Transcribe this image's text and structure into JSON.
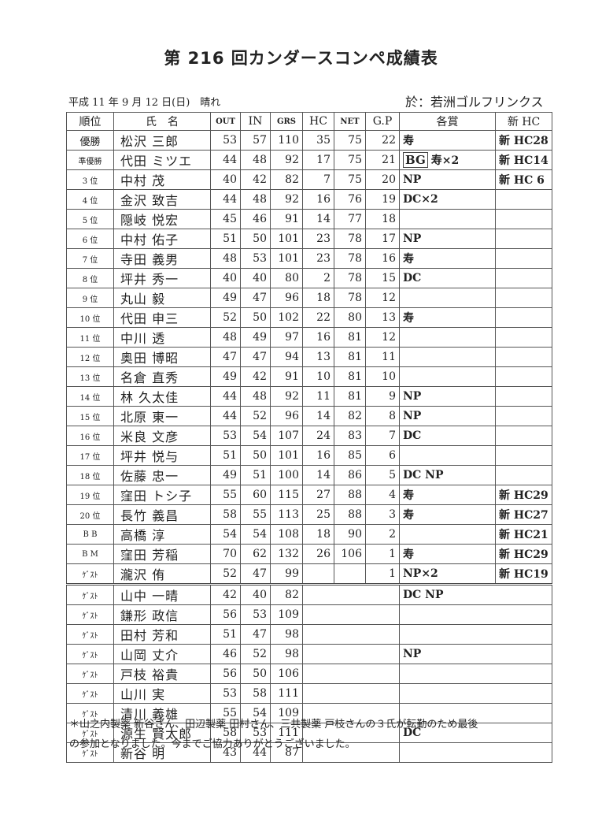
{
  "title": "第 216 回カンダースコンペ成績表",
  "date": "平成 11 年 9 月 12 日(日)　晴れ",
  "venue": "於：若洲ゴルフリンクス",
  "headers": [
    "順位",
    "氏　名",
    "OUT",
    "IN",
    "GRS",
    "HC",
    "NET",
    "G.P",
    "各賞",
    "新 HC"
  ],
  "rows": [
    {
      "rank": "優勝",
      "name": "松沢 三郎",
      "out": "53",
      "in": "57",
      "grs": "110",
      "hc": "35",
      "net": "75",
      "gp": "22",
      "award": "寿",
      "newhc": "新 HC28"
    },
    {
      "rank": "準優勝",
      "name": "代田 ミツエ",
      "out": "44",
      "in": "48",
      "grs": "92",
      "hc": "17",
      "net": "75",
      "gp": "21",
      "badge": "BG",
      "award": "寿×2",
      "newhc": "新 HC14"
    },
    {
      "rank": "3 位",
      "name": "中村 茂",
      "out": "40",
      "in": "42",
      "grs": "82",
      "hc": "7",
      "net": "75",
      "gp": "20",
      "award": "NP",
      "newhc": "新 HC 6"
    },
    {
      "rank": "4 位",
      "name": "金沢 致吉",
      "out": "44",
      "in": "48",
      "grs": "92",
      "hc": "16",
      "net": "76",
      "gp": "19",
      "award": "DC×2",
      "newhc": ""
    },
    {
      "rank": "5 位",
      "name": "隠岐 悦宏",
      "out": "45",
      "in": "46",
      "grs": "91",
      "hc": "14",
      "net": "77",
      "gp": "18",
      "award": "",
      "newhc": ""
    },
    {
      "rank": "6 位",
      "name": "中村 佑子",
      "out": "51",
      "in": "50",
      "grs": "101",
      "hc": "23",
      "net": "78",
      "gp": "17",
      "award": "NP",
      "newhc": ""
    },
    {
      "rank": "7 位",
      "name": "寺田 義男",
      "out": "48",
      "in": "53",
      "grs": "101",
      "hc": "23",
      "net": "78",
      "gp": "16",
      "award": "寿",
      "newhc": ""
    },
    {
      "rank": "8 位",
      "name": "坪井 秀一",
      "out": "40",
      "in": "40",
      "grs": "80",
      "hc": "2",
      "net": "78",
      "gp": "15",
      "award": "DC",
      "newhc": ""
    },
    {
      "rank": "9 位",
      "name": "丸山 毅",
      "out": "49",
      "in": "47",
      "grs": "96",
      "hc": "18",
      "net": "78",
      "gp": "12",
      "award": "",
      "newhc": ""
    },
    {
      "rank": "10 位",
      "name": "代田 申三",
      "out": "52",
      "in": "50",
      "grs": "102",
      "hc": "22",
      "net": "80",
      "gp": "13",
      "award": "寿",
      "newhc": ""
    },
    {
      "rank": "11 位",
      "name": "中川 透",
      "out": "48",
      "in": "49",
      "grs": "97",
      "hc": "16",
      "net": "81",
      "gp": "12",
      "award": "",
      "newhc": ""
    },
    {
      "rank": "12 位",
      "name": "奥田 博昭",
      "out": "47",
      "in": "47",
      "grs": "94",
      "hc": "13",
      "net": "81",
      "gp": "11",
      "award": "",
      "newhc": ""
    },
    {
      "rank": "13 位",
      "name": "名倉 直秀",
      "out": "49",
      "in": "42",
      "grs": "91",
      "hc": "10",
      "net": "81",
      "gp": "10",
      "award": "",
      "newhc": ""
    },
    {
      "rank": "14 位",
      "name": "林 久太佳",
      "out": "44",
      "in": "48",
      "grs": "92",
      "hc": "11",
      "net": "81",
      "gp": "9",
      "award": "NP",
      "newhc": ""
    },
    {
      "rank": "15 位",
      "name": "北原 東一",
      "out": "44",
      "in": "52",
      "grs": "96",
      "hc": "14",
      "net": "82",
      "gp": "8",
      "award": "NP",
      "newhc": ""
    },
    {
      "rank": "16 位",
      "name": "米良 文彦",
      "out": "53",
      "in": "54",
      "grs": "107",
      "hc": "24",
      "net": "83",
      "gp": "7",
      "award": "DC",
      "newhc": ""
    },
    {
      "rank": "17 位",
      "name": "坪井 悦与",
      "out": "51",
      "in": "50",
      "grs": "101",
      "hc": "16",
      "net": "85",
      "gp": "6",
      "award": "",
      "newhc": ""
    },
    {
      "rank": "18 位",
      "name": "佐藤 忠一",
      "out": "49",
      "in": "51",
      "grs": "100",
      "hc": "14",
      "net": "86",
      "gp": "5",
      "award": "DC NP",
      "newhc": ""
    },
    {
      "rank": "19 位",
      "name": "窪田 トシ子",
      "out": "55",
      "in": "60",
      "grs": "115",
      "hc": "27",
      "net": "88",
      "gp": "4",
      "award": "寿",
      "newhc": "新 HC29"
    },
    {
      "rank": "20 位",
      "name": "長竹 義昌",
      "out": "58",
      "in": "55",
      "grs": "113",
      "hc": "25",
      "net": "88",
      "gp": "3",
      "award": "寿",
      "newhc": "新 HC27"
    },
    {
      "rank": "B B",
      "name": "高橋 淳",
      "out": "54",
      "in": "54",
      "grs": "108",
      "hc": "18",
      "net": "90",
      "gp": "2",
      "award": "",
      "newhc": "新 HC21"
    },
    {
      "rank": "B M",
      "name": "窪田 芳稲",
      "out": "70",
      "in": "62",
      "grs": "132",
      "hc": "26",
      "net": "106",
      "gp": "1",
      "award": "寿",
      "newhc": "新 HC29"
    },
    {
      "rank": "ｹﾞｽﾄ",
      "name": "瀧沢 侑",
      "out": "52",
      "in": "47",
      "grs": "99",
      "hc": "",
      "net": "",
      "gp": "1",
      "award": "NP×2",
      "newhc": "新 HC19"
    }
  ],
  "guests": [
    {
      "rank": "ｹﾞｽﾄ",
      "name": "山中 一晴",
      "out": "42",
      "in": "40",
      "grs": "82",
      "award": "DC NP"
    },
    {
      "rank": "ｹﾞｽﾄ",
      "name": "鎌形 政信",
      "out": "56",
      "in": "53",
      "grs": "109",
      "award": ""
    },
    {
      "rank": "ｹﾞｽﾄ",
      "name": "田村 芳和",
      "out": "51",
      "in": "47",
      "grs": "98",
      "award": ""
    },
    {
      "rank": "ｹﾞｽﾄ",
      "name": "山岡 丈介",
      "out": "46",
      "in": "52",
      "grs": "98",
      "award": "NP"
    },
    {
      "rank": "ｹﾞｽﾄ",
      "name": "戸枝 裕貴",
      "out": "56",
      "in": "50",
      "grs": "106",
      "award": ""
    },
    {
      "rank": "ｹﾞｽﾄ",
      "name": "山川 実",
      "out": "53",
      "in": "58",
      "grs": "111",
      "award": ""
    },
    {
      "rank": "ｹﾞｽﾄ",
      "name": "清川 義雄",
      "out": "55",
      "in": "54",
      "grs": "109",
      "award": ""
    },
    {
      "rank": "ｹﾞｽﾄ",
      "name": "源生 賢太郎",
      "out": "58",
      "in": "53",
      "grs": "111",
      "award": "DC"
    },
    {
      "rank": "ｹﾞｽﾄ",
      "name": "新谷 明",
      "out": "43",
      "in": "44",
      "grs": "87",
      "award": ""
    }
  ],
  "footnote": [
    "＊山之内製薬 新谷さん、田辺製薬 田村さん、三共製薬 戸枝さんの３氏が転勤のため最後",
    "の参加となりました。今までご協力ありがとうございました。"
  ]
}
